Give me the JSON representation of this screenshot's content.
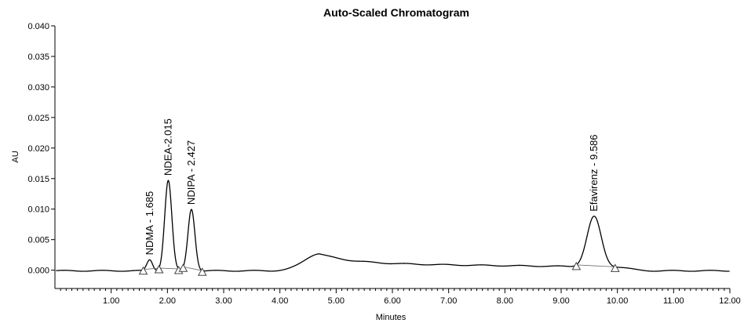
{
  "chart_data": {
    "type": "line",
    "title": "Auto-Scaled Chromatogram",
    "xlabel": "Minutes",
    "ylabel": "AU",
    "xlim": [
      0,
      12
    ],
    "ylim": [
      -0.003,
      0.04
    ],
    "x_ticks": [
      1,
      2,
      3,
      4,
      5,
      6,
      7,
      8,
      9,
      10,
      11,
      12
    ],
    "x_tick_labels": [
      "1.00",
      "2.00",
      "3.00",
      "4.00",
      "5.00",
      "6.00",
      "7.00",
      "8.00",
      "9.00",
      "10.00",
      "11.00",
      "12.00"
    ],
    "y_ticks": [
      0,
      0.005,
      0.01,
      0.015,
      0.02,
      0.025,
      0.03,
      0.035,
      0.04
    ],
    "y_tick_labels": [
      "0.000",
      "0.005",
      "0.010",
      "0.015",
      "0.020",
      "0.025",
      "0.030",
      "0.035",
      "0.040"
    ],
    "grid": false,
    "peaks": [
      {
        "label": "NDMA - 1.685",
        "rt": 1.685,
        "height": 0.0018,
        "start": 1.57,
        "end": 1.85
      },
      {
        "label": "NDEA-2.015",
        "rt": 2.015,
        "height": 0.0148,
        "start": 1.85,
        "end": 2.2
      },
      {
        "label": "NDIPA - 2.427",
        "rt": 2.427,
        "height": 0.0101,
        "start": 2.28,
        "end": 2.62
      },
      {
        "label": "Efavirenz - 9.586",
        "rt": 9.586,
        "height": 0.0082,
        "start": 9.27,
        "end": 9.96
      }
    ],
    "hump": {
      "center": 4.7,
      "height": 0.0028
    },
    "drift_level": 0.0012
  }
}
